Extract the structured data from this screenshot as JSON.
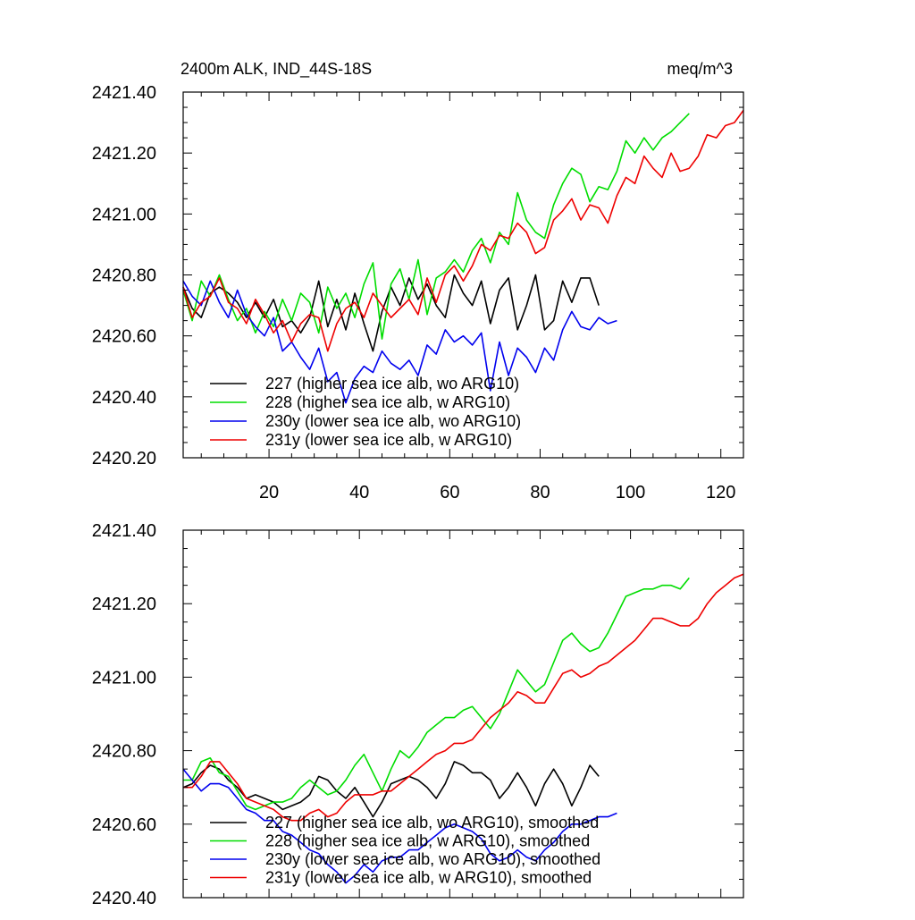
{
  "chart_data": [
    {
      "type": "line",
      "title": "2400m ALK, IND_44S-18S",
      "units": "meq/m^3",
      "xlim": [
        1,
        125
      ],
      "ylim": [
        2420.2,
        2421.4
      ],
      "x_ticks": [
        20,
        40,
        60,
        80,
        100,
        120
      ],
      "y_ticks": [
        2420.2,
        2420.4,
        2420.6,
        2420.8,
        2421.0,
        2421.2,
        2421.4
      ],
      "y_tick_labels": [
        "2420.20",
        "2420.40",
        "2420.60",
        "2420.80",
        "2421.00",
        "2421.20",
        "2421.40"
      ],
      "grid": false,
      "legend_position": "bottom-left",
      "series": [
        {
          "name": "227 (higher sea ice alb, wo ARG10)",
          "color": "#000000",
          "x": [
            1,
            3,
            5,
            7,
            9,
            11,
            13,
            15,
            17,
            19,
            21,
            23,
            25,
            27,
            29,
            31,
            33,
            35,
            37,
            39,
            41,
            43,
            45,
            47,
            49,
            51,
            53,
            55,
            57,
            59,
            61,
            63,
            65,
            67,
            69,
            71,
            73,
            75,
            77,
            79,
            81,
            83,
            85,
            87,
            89,
            91,
            93
          ],
          "y": [
            2420.76,
            2420.69,
            2420.66,
            2420.74,
            2420.76,
            2420.74,
            2420.71,
            2420.66,
            2420.71,
            2420.66,
            2420.72,
            2420.63,
            2420.65,
            2420.61,
            2420.66,
            2420.78,
            2420.63,
            2420.72,
            2420.62,
            2420.74,
            2420.64,
            2420.55,
            2420.68,
            2420.76,
            2420.7,
            2420.79,
            2420.72,
            2420.77,
            2420.7,
            2420.66,
            2420.8,
            2420.74,
            2420.7,
            2420.78,
            2420.64,
            2420.75,
            2420.79,
            2420.62,
            2420.7,
            2420.8,
            2420.62,
            2420.65,
            2420.78,
            2420.71,
            2420.79,
            2420.79,
            2420.7
          ]
        },
        {
          "name": "228 (higher sea ice alb, w ARG10)",
          "color": "#00dd00",
          "x": [
            1,
            3,
            5,
            7,
            9,
            11,
            13,
            15,
            17,
            19,
            21,
            23,
            25,
            27,
            29,
            31,
            33,
            35,
            37,
            39,
            41,
            43,
            45,
            47,
            49,
            51,
            53,
            55,
            57,
            59,
            61,
            63,
            65,
            67,
            69,
            71,
            73,
            75,
            77,
            79,
            81,
            83,
            85,
            87,
            89,
            91,
            93,
            95,
            97,
            99,
            101,
            103,
            105,
            107,
            109,
            111,
            113
          ],
          "y": [
            2420.75,
            2420.65,
            2420.78,
            2420.73,
            2420.8,
            2420.72,
            2420.65,
            2420.69,
            2420.61,
            2420.68,
            2420.63,
            2420.72,
            2420.65,
            2420.74,
            2420.71,
            2420.61,
            2420.76,
            2420.69,
            2420.74,
            2420.66,
            2420.77,
            2420.84,
            2420.59,
            2420.77,
            2420.82,
            2420.72,
            2420.85,
            2420.67,
            2420.79,
            2420.81,
            2420.85,
            2420.81,
            2420.88,
            2420.92,
            2420.84,
            2420.94,
            2420.9,
            2421.07,
            2420.98,
            2420.94,
            2420.92,
            2421.03,
            2421.1,
            2421.15,
            2421.13,
            2421.04,
            2421.09,
            2421.08,
            2421.14,
            2421.24,
            2421.2,
            2421.25,
            2421.21,
            2421.25,
            2421.27,
            2421.3,
            2421.33
          ]
        },
        {
          "name": "230y (lower sea ice alb, wo ARG10)",
          "color": "#0000ee",
          "x": [
            1,
            3,
            5,
            7,
            9,
            11,
            13,
            15,
            17,
            19,
            21,
            23,
            25,
            27,
            29,
            31,
            33,
            35,
            37,
            39,
            41,
            43,
            45,
            47,
            49,
            51,
            53,
            55,
            57,
            59,
            61,
            63,
            65,
            67,
            69,
            71,
            73,
            75,
            77,
            79,
            81,
            83,
            85,
            87,
            89,
            91,
            93,
            95,
            97
          ],
          "y": [
            2420.78,
            2420.73,
            2420.7,
            2420.78,
            2420.71,
            2420.66,
            2420.75,
            2420.67,
            2420.63,
            2420.6,
            2420.66,
            2420.55,
            2420.58,
            2420.53,
            2420.49,
            2420.56,
            2420.45,
            2420.48,
            2420.38,
            2420.46,
            2420.5,
            2420.48,
            2420.55,
            2420.51,
            2420.49,
            2420.52,
            2420.47,
            2420.57,
            2420.54,
            2420.62,
            2420.58,
            2420.6,
            2420.57,
            2420.61,
            2420.42,
            2420.58,
            2420.47,
            2420.56,
            2420.53,
            2420.48,
            2420.56,
            2420.52,
            2420.62,
            2420.68,
            2420.63,
            2420.62,
            2420.66,
            2420.64,
            2420.65
          ]
        },
        {
          "name": "231y (lower sea ice alb, w ARG10)",
          "color": "#ee0000",
          "x": [
            1,
            3,
            5,
            7,
            9,
            11,
            13,
            15,
            17,
            19,
            21,
            23,
            25,
            27,
            29,
            31,
            33,
            35,
            37,
            39,
            41,
            43,
            45,
            47,
            49,
            51,
            53,
            55,
            57,
            59,
            61,
            63,
            65,
            67,
            69,
            71,
            73,
            75,
            77,
            79,
            81,
            83,
            85,
            87,
            89,
            91,
            93,
            95,
            97,
            99,
            101,
            103,
            105,
            107,
            109,
            111,
            113,
            115,
            117,
            119,
            121,
            123,
            125
          ],
          "y": [
            2420.76,
            2420.66,
            2420.71,
            2420.73,
            2420.79,
            2420.71,
            2420.69,
            2420.64,
            2420.72,
            2420.67,
            2420.61,
            2420.65,
            2420.58,
            2420.64,
            2420.67,
            2420.66,
            2420.55,
            2420.64,
            2420.69,
            2420.71,
            2420.66,
            2420.74,
            2420.7,
            2420.66,
            2420.69,
            2420.72,
            2420.67,
            2420.79,
            2420.71,
            2420.8,
            2420.83,
            2420.78,
            2420.83,
            2420.9,
            2420.88,
            2420.93,
            2420.92,
            2420.97,
            2420.94,
            2420.87,
            2420.89,
            2420.98,
            2421.01,
            2421.05,
            2420.98,
            2421.03,
            2421.02,
            2420.97,
            2421.06,
            2421.12,
            2421.1,
            2421.19,
            2421.15,
            2421.12,
            2421.2,
            2421.14,
            2421.15,
            2421.19,
            2421.26,
            2421.25,
            2421.29,
            2421.3,
            2421.34
          ]
        }
      ]
    },
    {
      "type": "line",
      "xlim": [
        1,
        125
      ],
      "ylim": [
        2420.4,
        2421.4
      ],
      "x_ticks": [
        20,
        40,
        60,
        80,
        100,
        120
      ],
      "y_ticks": [
        2420.4,
        2420.6,
        2420.8,
        2421.0,
        2421.2,
        2421.4
      ],
      "y_tick_labels": [
        "2420.40",
        "2420.60",
        "2420.80",
        "2421.00",
        "2421.20",
        "2421.40"
      ],
      "grid": false,
      "legend_position": "bottom-left",
      "series": [
        {
          "name": "227 (higher sea ice alb, wo ARG10), smoothed",
          "color": "#000000",
          "x": [
            1,
            3,
            5,
            7,
            9,
            11,
            13,
            15,
            17,
            19,
            21,
            23,
            25,
            27,
            29,
            31,
            33,
            35,
            37,
            39,
            41,
            43,
            45,
            47,
            49,
            51,
            53,
            55,
            57,
            59,
            61,
            63,
            65,
            67,
            69,
            71,
            73,
            75,
            77,
            79,
            81,
            83,
            85,
            87,
            89,
            91,
            93
          ],
          "y": [
            2420.7,
            2420.71,
            2420.74,
            2420.76,
            2420.75,
            2420.72,
            2420.7,
            2420.67,
            2420.68,
            2420.67,
            2420.66,
            2420.64,
            2420.65,
            2420.66,
            2420.68,
            2420.73,
            2420.72,
            2420.69,
            2420.67,
            2420.7,
            2420.66,
            2420.62,
            2420.66,
            2420.71,
            2420.72,
            2420.73,
            2420.72,
            2420.7,
            2420.67,
            2420.71,
            2420.77,
            2420.76,
            2420.74,
            2420.74,
            2420.72,
            2420.67,
            2420.7,
            2420.74,
            2420.7,
            2420.65,
            2420.71,
            2420.75,
            2420.71,
            2420.65,
            2420.7,
            2420.76,
            2420.73
          ]
        },
        {
          "name": "228 (higher sea ice alb, w ARG10), smoothed",
          "color": "#00dd00",
          "x": [
            1,
            3,
            5,
            7,
            9,
            11,
            13,
            15,
            17,
            19,
            21,
            23,
            25,
            27,
            29,
            31,
            33,
            35,
            37,
            39,
            41,
            43,
            45,
            47,
            49,
            51,
            53,
            55,
            57,
            59,
            61,
            63,
            65,
            67,
            69,
            71,
            73,
            75,
            77,
            79,
            81,
            83,
            85,
            87,
            89,
            91,
            93,
            95,
            97,
            99,
            101,
            103,
            105,
            107,
            109,
            111,
            113
          ],
          "y": [
            2420.72,
            2420.72,
            2420.77,
            2420.78,
            2420.74,
            2420.73,
            2420.69,
            2420.65,
            2420.64,
            2420.65,
            2420.66,
            2420.66,
            2420.67,
            2420.7,
            2420.72,
            2420.7,
            2420.68,
            2420.69,
            2420.72,
            2420.76,
            2420.79,
            2420.74,
            2420.69,
            2420.75,
            2420.8,
            2420.78,
            2420.81,
            2420.85,
            2420.87,
            2420.89,
            2420.89,
            2420.91,
            2420.92,
            2420.89,
            2420.86,
            2420.9,
            2420.96,
            2421.02,
            2420.99,
            2420.96,
            2420.98,
            2421.04,
            2421.1,
            2421.12,
            2421.09,
            2421.07,
            2421.08,
            2421.12,
            2421.17,
            2421.22,
            2421.23,
            2421.24,
            2421.24,
            2421.25,
            2421.25,
            2421.24,
            2421.27
          ]
        },
        {
          "name": "230y (lower sea ice alb, wo ARG10), smoothed",
          "color": "#0000ee",
          "x": [
            1,
            3,
            5,
            7,
            9,
            11,
            13,
            15,
            17,
            19,
            21,
            23,
            25,
            27,
            29,
            31,
            33,
            35,
            37,
            39,
            41,
            43,
            45,
            47,
            49,
            51,
            53,
            55,
            57,
            59,
            61,
            63,
            65,
            67,
            69,
            71,
            73,
            75,
            77,
            79,
            81,
            83,
            85,
            87,
            89,
            91,
            93,
            95,
            97
          ],
          "y": [
            2420.75,
            2420.72,
            2420.69,
            2420.71,
            2420.71,
            2420.7,
            2420.67,
            2420.64,
            2420.63,
            2420.61,
            2420.61,
            2420.58,
            2420.57,
            2420.55,
            2420.53,
            2420.52,
            2420.49,
            2420.47,
            2420.44,
            2420.46,
            2420.49,
            2420.47,
            2420.5,
            2420.51,
            2420.51,
            2420.53,
            2420.53,
            2420.55,
            2420.57,
            2420.59,
            2420.6,
            2420.59,
            2420.58,
            2420.56,
            2420.52,
            2420.5,
            2420.51,
            2420.53,
            2420.51,
            2420.5,
            2420.53,
            2420.55,
            2420.58,
            2420.6,
            2420.6,
            2420.61,
            2420.62,
            2420.62,
            2420.63
          ]
        },
        {
          "name": "231y (lower sea ice alb, w ARG10), smoothed",
          "color": "#ee0000",
          "x": [
            1,
            3,
            5,
            7,
            9,
            11,
            13,
            15,
            17,
            19,
            21,
            23,
            25,
            27,
            29,
            31,
            33,
            35,
            37,
            39,
            41,
            43,
            45,
            47,
            49,
            51,
            53,
            55,
            57,
            59,
            61,
            63,
            65,
            67,
            69,
            71,
            73,
            75,
            77,
            79,
            81,
            83,
            85,
            87,
            89,
            91,
            93,
            95,
            97,
            99,
            101,
            103,
            105,
            107,
            109,
            111,
            113,
            115,
            117,
            119,
            121,
            123,
            125
          ],
          "y": [
            2420.7,
            2420.7,
            2420.73,
            2420.77,
            2420.77,
            2420.74,
            2420.71,
            2420.67,
            2420.66,
            2420.65,
            2420.64,
            2420.62,
            2420.61,
            2420.61,
            2420.63,
            2420.64,
            2420.62,
            2420.63,
            2420.66,
            2420.68,
            2420.68,
            2420.68,
            2420.69,
            2420.69,
            2420.71,
            2420.73,
            2420.75,
            2420.77,
            2420.79,
            2420.8,
            2420.82,
            2420.82,
            2420.83,
            2420.86,
            2420.89,
            2420.91,
            2420.93,
            2420.96,
            2420.95,
            2420.93,
            2420.93,
            2420.97,
            2421.01,
            2421.02,
            2421.0,
            2421.01,
            2421.03,
            2421.04,
            2421.06,
            2421.08,
            2421.1,
            2421.13,
            2421.16,
            2421.16,
            2421.15,
            2421.14,
            2421.14,
            2421.16,
            2421.2,
            2421.23,
            2421.25,
            2421.27,
            2421.28
          ]
        }
      ]
    }
  ]
}
